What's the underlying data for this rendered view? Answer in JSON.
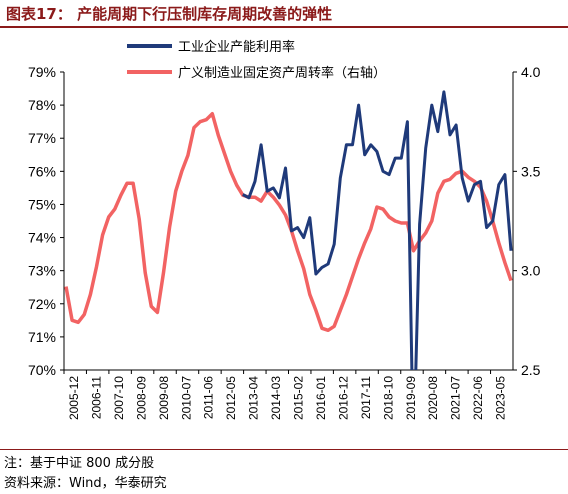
{
  "figure": {
    "title": "图表17： 产能周期下行压制库存周期改善的弹性",
    "note": "注：基于中证 800 成分股",
    "source": "资料来源：Wind，华泰研究",
    "brand_color": "#8b1a1a"
  },
  "chart_data": {
    "type": "line",
    "y_left": {
      "ylim": [
        0.7,
        0.79
      ],
      "ticks": [
        "70%",
        "71%",
        "72%",
        "73%",
        "74%",
        "75%",
        "76%",
        "77%",
        "78%",
        "79%"
      ]
    },
    "y_right": {
      "ylim": [
        2.5,
        4.0
      ],
      "ticks": [
        "2.5",
        "3.0",
        "3.5",
        "4.0"
      ]
    },
    "x_ticks": [
      "2005-12",
      "2006-11",
      "2007-10",
      "2008-09",
      "2009-08",
      "2010-07",
      "2011-06",
      "2012-05",
      "2013-04",
      "2014-03",
      "2015-02",
      "2016-01",
      "2016-12",
      "2017-11",
      "2018-10",
      "2019-09",
      "2020-08",
      "2021-07",
      "2022-06",
      "2023-05"
    ],
    "x_range": [
      "2005-12",
      "2024-03"
    ],
    "legend_position": "top",
    "grid": false,
    "series": [
      {
        "name": "工业企业产能利用率",
        "axis": "left",
        "color": "#1f3a7a",
        "points": [
          [
            "2013-03",
            75.3
          ],
          [
            "2013-06",
            75.2
          ],
          [
            "2013-09",
            75.7
          ],
          [
            "2013-12",
            76.8
          ],
          [
            "2014-03",
            75.4
          ],
          [
            "2014-06",
            75.5
          ],
          [
            "2014-09",
            75.2
          ],
          [
            "2014-12",
            76.1
          ],
          [
            "2015-03",
            74.2
          ],
          [
            "2015-06",
            74.3
          ],
          [
            "2015-09",
            74.0
          ],
          [
            "2015-12",
            74.6
          ],
          [
            "2016-03",
            72.9
          ],
          [
            "2016-06",
            73.1
          ],
          [
            "2016-09",
            73.2
          ],
          [
            "2016-12",
            73.8
          ],
          [
            "2017-03",
            75.8
          ],
          [
            "2017-06",
            76.8
          ],
          [
            "2017-09",
            76.8
          ],
          [
            "2017-12",
            78.0
          ],
          [
            "2018-03",
            76.5
          ],
          [
            "2018-06",
            76.8
          ],
          [
            "2018-09",
            76.6
          ],
          [
            "2018-12",
            76.0
          ],
          [
            "2019-03",
            75.9
          ],
          [
            "2019-06",
            76.4
          ],
          [
            "2019-09",
            76.4
          ],
          [
            "2019-12",
            77.5
          ],
          [
            "2020-03",
            67.3
          ],
          [
            "2020-06",
            74.4
          ],
          [
            "2020-09",
            76.7
          ],
          [
            "2020-12",
            78.0
          ],
          [
            "2021-03",
            77.2
          ],
          [
            "2021-06",
            78.4
          ],
          [
            "2021-09",
            77.1
          ],
          [
            "2021-12",
            77.4
          ],
          [
            "2022-03",
            75.8
          ],
          [
            "2022-06",
            75.1
          ],
          [
            "2022-09",
            75.6
          ],
          [
            "2022-12",
            75.7
          ],
          [
            "2023-03",
            74.3
          ],
          [
            "2023-06",
            74.5
          ],
          [
            "2023-09",
            75.6
          ],
          [
            "2023-12",
            75.9
          ],
          [
            "2024-03",
            73.6
          ]
        ]
      },
      {
        "name": "广义制造业固定资产周转率（右轴）",
        "axis": "right",
        "color": "#f26363",
        "points": [
          [
            "2005-12",
            2.92
          ],
          [
            "2006-03",
            2.75
          ],
          [
            "2006-06",
            2.74
          ],
          [
            "2006-09",
            2.78
          ],
          [
            "2006-12",
            2.88
          ],
          [
            "2007-03",
            3.02
          ],
          [
            "2007-06",
            3.18
          ],
          [
            "2007-09",
            3.27
          ],
          [
            "2007-12",
            3.31
          ],
          [
            "2008-03",
            3.38
          ],
          [
            "2008-06",
            3.44
          ],
          [
            "2008-09",
            3.44
          ],
          [
            "2008-12",
            3.26
          ],
          [
            "2009-03",
            2.99
          ],
          [
            "2009-06",
            2.82
          ],
          [
            "2009-09",
            2.79
          ],
          [
            "2009-12",
            2.99
          ],
          [
            "2010-03",
            3.22
          ],
          [
            "2010-06",
            3.4
          ],
          [
            "2010-09",
            3.5
          ],
          [
            "2010-12",
            3.58
          ],
          [
            "2011-03",
            3.72
          ],
          [
            "2011-06",
            3.75
          ],
          [
            "2011-09",
            3.76
          ],
          [
            "2011-12",
            3.79
          ],
          [
            "2012-03",
            3.68
          ],
          [
            "2012-06",
            3.59
          ],
          [
            "2012-09",
            3.5
          ],
          [
            "2012-12",
            3.43
          ],
          [
            "2013-03",
            3.38
          ],
          [
            "2013-06",
            3.37
          ],
          [
            "2013-09",
            3.37
          ],
          [
            "2013-12",
            3.35
          ],
          [
            "2014-03",
            3.4
          ],
          [
            "2014-06",
            3.37
          ],
          [
            "2014-09",
            3.33
          ],
          [
            "2014-12",
            3.28
          ],
          [
            "2015-03",
            3.2
          ],
          [
            "2015-06",
            3.1
          ],
          [
            "2015-09",
            3.01
          ],
          [
            "2015-12",
            2.88
          ],
          [
            "2016-03",
            2.8
          ],
          [
            "2016-06",
            2.71
          ],
          [
            "2016-09",
            2.7
          ],
          [
            "2016-12",
            2.72
          ],
          [
            "2017-03",
            2.8
          ],
          [
            "2017-06",
            2.88
          ],
          [
            "2017-09",
            2.97
          ],
          [
            "2017-12",
            3.06
          ],
          [
            "2018-03",
            3.14
          ],
          [
            "2018-06",
            3.21
          ],
          [
            "2018-09",
            3.32
          ],
          [
            "2018-12",
            3.31
          ],
          [
            "2019-03",
            3.27
          ],
          [
            "2019-06",
            3.25
          ],
          [
            "2019-09",
            3.24
          ],
          [
            "2019-12",
            3.24
          ],
          [
            "2020-03",
            3.1
          ],
          [
            "2020-06",
            3.15
          ],
          [
            "2020-09",
            3.19
          ],
          [
            "2020-12",
            3.25
          ],
          [
            "2021-03",
            3.39
          ],
          [
            "2021-06",
            3.45
          ],
          [
            "2021-09",
            3.46
          ],
          [
            "2021-12",
            3.49
          ],
          [
            "2022-03",
            3.5
          ],
          [
            "2022-06",
            3.47
          ],
          [
            "2022-09",
            3.45
          ],
          [
            "2022-12",
            3.42
          ],
          [
            "2023-03",
            3.35
          ],
          [
            "2023-06",
            3.25
          ],
          [
            "2023-09",
            3.14
          ],
          [
            "2023-12",
            3.04
          ],
          [
            "2024-03",
            2.95
          ]
        ]
      }
    ]
  }
}
